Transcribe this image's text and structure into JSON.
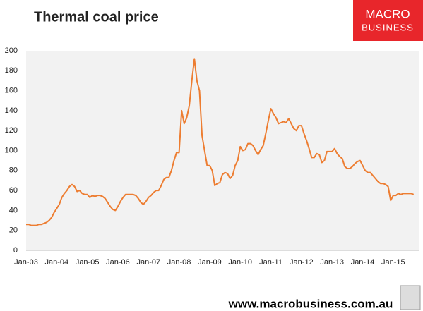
{
  "chart_data": {
    "type": "line",
    "title": "Thermal coal price",
    "logo": [
      "MACRO",
      "BUSINESS"
    ],
    "footer": "www.macrobusiness.com.au",
    "categories": [
      "Jan-03",
      null,
      null,
      null,
      null,
      null,
      null,
      null,
      null,
      null,
      null,
      null,
      "Jan-04",
      null,
      null,
      null,
      null,
      null,
      null,
      null,
      null,
      null,
      null,
      null,
      "Jan-05",
      null,
      null,
      null,
      null,
      null,
      null,
      null,
      null,
      null,
      null,
      null,
      "Jan-06",
      null,
      null,
      null,
      null,
      null,
      null,
      null,
      null,
      null,
      null,
      null,
      "Jan-07",
      null,
      null,
      null,
      null,
      null,
      null,
      null,
      null,
      null,
      null,
      null,
      "Jan-08",
      null,
      null,
      null,
      null,
      null,
      null,
      null,
      null,
      null,
      null,
      null,
      "Jan-09",
      null,
      null,
      null,
      null,
      null,
      null,
      null,
      null,
      null,
      null,
      null,
      "Jan-10",
      null,
      null,
      null,
      null,
      null,
      null,
      null,
      null,
      null,
      null,
      null,
      "Jan-11",
      null,
      null,
      null,
      null,
      null,
      null,
      null,
      null,
      null,
      null,
      null,
      "Jan-12",
      null,
      null,
      null,
      null,
      null,
      null,
      null,
      null,
      null,
      null,
      null,
      "Jan-13",
      null,
      null,
      null,
      null,
      null,
      null,
      null,
      null,
      null,
      null,
      null,
      "Jan-14",
      null,
      null,
      null,
      null,
      null,
      null,
      null,
      null,
      null,
      null,
      null,
      "Jan-15",
      null,
      null,
      null,
      null,
      null,
      null,
      null,
      null
    ],
    "series": [
      {
        "name": "Thermal coal price",
        "color": "#ed7d31",
        "values": [
          26,
          26,
          25,
          25,
          25,
          26,
          26,
          27,
          28,
          30,
          33,
          38,
          42,
          46,
          53,
          57,
          60,
          64,
          66,
          64,
          59,
          60,
          57,
          56,
          56,
          53,
          55,
          54,
          55,
          55,
          54,
          52,
          48,
          44,
          41,
          40,
          44,
          49,
          53,
          56,
          56,
          56,
          56,
          55,
          52,
          48,
          46,
          49,
          53,
          55,
          58,
          60,
          60,
          65,
          71,
          73,
          73,
          80,
          90,
          98,
          98,
          140,
          127,
          133,
          145,
          170,
          192,
          170,
          160,
          115,
          100,
          85,
          85,
          80,
          65,
          67,
          68,
          76,
          78,
          77,
          72,
          75,
          85,
          90,
          104,
          100,
          101,
          107,
          107,
          105,
          100,
          96,
          101,
          105,
          117,
          130,
          142,
          137,
          133,
          127,
          128,
          129,
          128,
          132,
          127,
          122,
          120,
          125,
          125,
          117,
          110,
          102,
          93,
          93,
          97,
          96,
          88,
          90,
          99,
          99,
          99,
          102,
          97,
          94,
          92,
          84,
          82,
          82,
          84,
          87,
          89,
          90,
          85,
          80,
          78,
          78,
          75,
          72,
          69,
          67,
          67,
          66,
          64,
          50,
          55,
          55,
          57,
          56,
          57,
          57,
          57,
          57,
          56
        ]
      }
    ],
    "ylim": [
      0,
      200
    ],
    "yticks": [
      0,
      20,
      40,
      60,
      80,
      100,
      120,
      140,
      160,
      180,
      200
    ],
    "grid": false
  }
}
